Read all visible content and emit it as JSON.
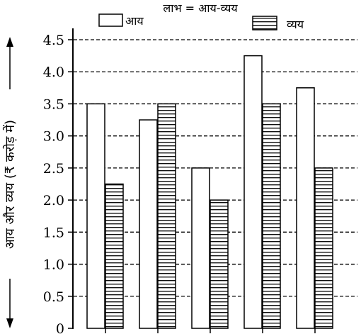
{
  "chart_data": {
    "type": "bar",
    "title": "लाभ = आय-व्यय",
    "ylabel": "आय और व्यय (₹ करोड़ में)",
    "xlabel": "",
    "ylim": [
      0,
      4.5
    ],
    "yticks": [
      "0",
      "0.5",
      "1.0",
      "1.5",
      "2.0",
      "2.5",
      "3.0",
      "3.5",
      "4.0",
      "4.5"
    ],
    "categories": [
      "",
      "",
      "",
      "",
      ""
    ],
    "series": [
      {
        "name": "आय",
        "values": [
          3.5,
          3.25,
          2.5,
          4.25,
          3.75
        ],
        "fill": "#ffffff",
        "pattern": "none"
      },
      {
        "name": "व्यय",
        "values": [
          2.25,
          3.5,
          2.0,
          3.5,
          2.5
        ],
        "fill": "#ffffff",
        "pattern": "horizontal-lines"
      }
    ],
    "grid": "horizontal-dashed",
    "legend": "top"
  }
}
